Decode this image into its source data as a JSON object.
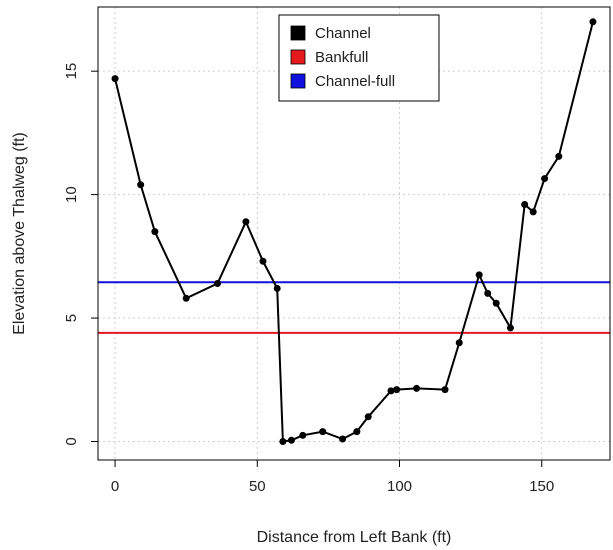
{
  "chart_data": {
    "type": "line",
    "title": "",
    "xlabel": "Distance from Left Bank (ft)",
    "ylabel": "Elevation above Thalweg (ft)",
    "xlim": [
      -6,
      174
    ],
    "ylim": [
      -0.75,
      17.6
    ],
    "xticks": [
      0,
      50,
      100,
      150
    ],
    "yticks": [
      0,
      5,
      10,
      15
    ],
    "grid": true,
    "legend_position": "top-center",
    "legend": [
      {
        "label": "Channel",
        "color": "#000000"
      },
      {
        "label": "Bankfull",
        "color": "#e41a1c"
      },
      {
        "label": "Channel-full",
        "color": "#1111dd"
      }
    ],
    "series": [
      {
        "name": "Channel",
        "color": "#000000",
        "x": [
          0,
          9,
          14,
          25,
          36,
          46,
          52,
          57,
          59,
          62,
          66,
          73,
          80,
          85,
          89,
          97,
          99,
          106,
          116,
          121,
          128,
          131,
          134,
          139,
          144,
          147,
          151,
          156,
          168
        ],
        "y": [
          14.7,
          10.4,
          8.5,
          5.8,
          6.4,
          8.9,
          7.3,
          6.2,
          0.0,
          0.05,
          0.25,
          0.4,
          0.1,
          0.4,
          1.0,
          2.05,
          2.1,
          2.15,
          2.1,
          4.0,
          6.75,
          6.0,
          5.6,
          4.6,
          9.6,
          9.3,
          10.65,
          11.55,
          17.0
        ]
      }
    ],
    "hlines": [
      {
        "name": "Bankfull",
        "y": 4.4,
        "color": "#e41a1c"
      },
      {
        "name": "Channel-full",
        "y": 6.45,
        "color": "#1111dd"
      }
    ]
  }
}
